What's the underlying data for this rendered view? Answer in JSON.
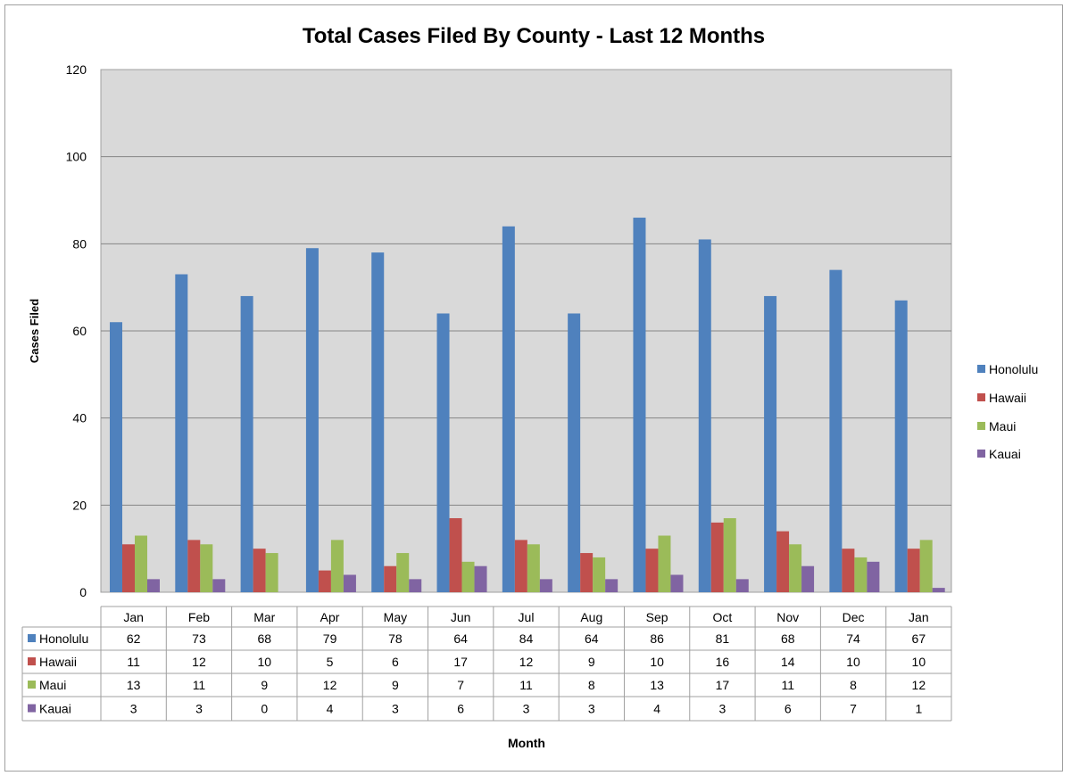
{
  "chart_data": {
    "type": "bar",
    "title": "Total Cases Filed By County - Last 12 Months",
    "xlabel": "Month",
    "ylabel": "Cases Filed",
    "ylim": [
      0,
      120
    ],
    "yticks": [
      0,
      20,
      40,
      60,
      80,
      100,
      120
    ],
    "grid": true,
    "legend_position": "right",
    "data_table": true,
    "categories": [
      "Jan",
      "Feb",
      "Mar",
      "Apr",
      "May",
      "Jun",
      "Jul",
      "Aug",
      "Sep",
      "Oct",
      "Nov",
      "Dec",
      "Jan"
    ],
    "series": [
      {
        "name": "Honolulu",
        "color": "#4F81BD",
        "values": [
          62,
          73,
          68,
          79,
          78,
          64,
          84,
          64,
          86,
          81,
          68,
          74,
          67
        ]
      },
      {
        "name": "Hawaii",
        "color": "#C0504D",
        "values": [
          11,
          12,
          10,
          5,
          6,
          17,
          12,
          9,
          10,
          16,
          14,
          10,
          10
        ]
      },
      {
        "name": "Maui",
        "color": "#9BBB59",
        "values": [
          13,
          11,
          9,
          12,
          9,
          7,
          11,
          8,
          13,
          17,
          11,
          8,
          12
        ]
      },
      {
        "name": "Kauai",
        "color": "#8064A2",
        "values": [
          3,
          3,
          0,
          4,
          3,
          6,
          3,
          3,
          4,
          3,
          6,
          7,
          1
        ]
      }
    ]
  }
}
